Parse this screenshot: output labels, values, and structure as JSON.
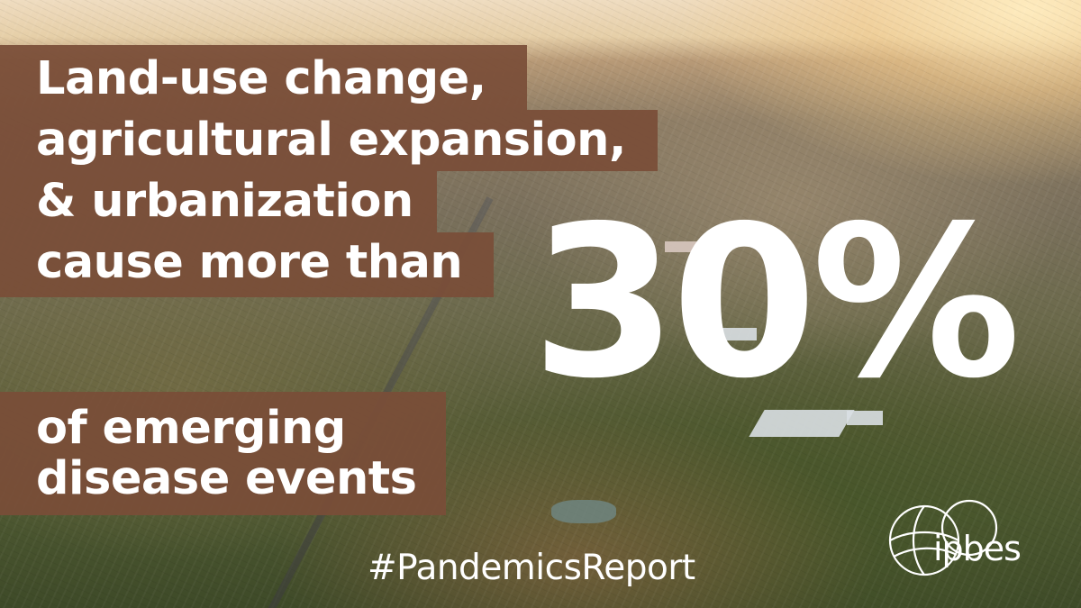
{
  "headline": {
    "line1": "Land-use change,",
    "line2": "agricultural expansion,",
    "line3": "& urbanization",
    "line4": "cause more than",
    "line5": "of emerging",
    "line6": "disease events"
  },
  "big_stat": "30%",
  "hashtag": "#PandemicsReport",
  "logo": {
    "text": "ipbes",
    "icon": "ipbes-globe-logo-icon"
  },
  "colors": {
    "text_box": "#7a4e38",
    "text": "#ffffff"
  }
}
